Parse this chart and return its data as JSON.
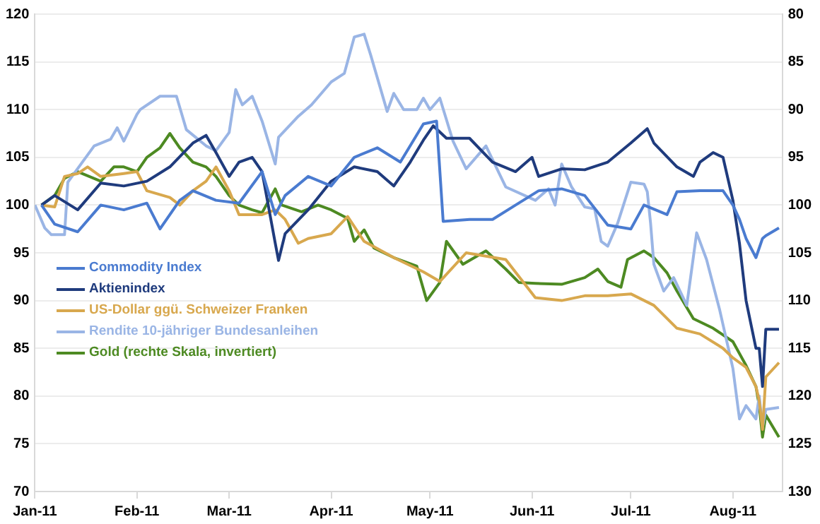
{
  "chart_data": {
    "type": "line",
    "xlim": [
      "2011-01-01",
      "2011-08-16"
    ],
    "xticks": [
      {
        "value": "2011-01-01",
        "label": "Jan-11"
      },
      {
        "value": "2011-02-01",
        "label": "Feb-11"
      },
      {
        "value": "2011-03-01",
        "label": "Mar-11"
      },
      {
        "value": "2011-04-01",
        "label": "Apr-11"
      },
      {
        "value": "2011-05-01",
        "label": "May-11"
      },
      {
        "value": "2011-06-01",
        "label": "Jun-11"
      },
      {
        "value": "2011-07-01",
        "label": "Jul-11"
      },
      {
        "value": "2011-08-01",
        "label": "Aug-11"
      }
    ],
    "ylim": [
      70,
      120
    ],
    "yticks": [
      70,
      75,
      80,
      85,
      90,
      95,
      100,
      105,
      110,
      115,
      120
    ],
    "y2lim": [
      130,
      80
    ],
    "y2ticks": [
      80,
      85,
      90,
      95,
      100,
      105,
      110,
      115,
      120,
      125,
      130
    ],
    "grid": "y",
    "legend": "left",
    "marker": "none",
    "line_style": "solid",
    "series": [
      {
        "name": "Commodity Index",
        "color": "#4a7bd0",
        "x": [
          "2011-01-03",
          "2011-01-07",
          "2011-01-14",
          "2011-01-21",
          "2011-01-28",
          "2011-02-04",
          "2011-02-08",
          "2011-02-14",
          "2011-02-18",
          "2011-02-25",
          "2011-03-04",
          "2011-03-11",
          "2011-03-15",
          "2011-03-18",
          "2011-03-25",
          "2011-04-01",
          "2011-04-08",
          "2011-04-15",
          "2011-04-22",
          "2011-04-29",
          "2011-05-03",
          "2011-05-05",
          "2011-05-13",
          "2011-05-20",
          "2011-05-27",
          "2011-06-03",
          "2011-06-10",
          "2011-06-17",
          "2011-06-24",
          "2011-07-01",
          "2011-07-05",
          "2011-07-12",
          "2011-07-15",
          "2011-07-22",
          "2011-07-29",
          "2011-08-01",
          "2011-08-03",
          "2011-08-05",
          "2011-08-08",
          "2011-08-10",
          "2011-08-11",
          "2011-08-15"
        ],
        "values": [
          100,
          98,
          97.2,
          100,
          99.5,
          100.2,
          97.5,
          100.5,
          101.5,
          100.5,
          100.2,
          103.5,
          99,
          101,
          103,
          102,
          105,
          106,
          104.5,
          108.5,
          108.8,
          98.3,
          98.5,
          98.5,
          100,
          101.5,
          101.7,
          101,
          97.9,
          97.5,
          100,
          99,
          101.4,
          101.5,
          101.5,
          100,
          98.5,
          96.5,
          94.5,
          96.5,
          96.8,
          97.6
        ]
      },
      {
        "name": "Aktienindex",
        "color": "#1f3b7d",
        "x": [
          "2011-01-03",
          "2011-01-07",
          "2011-01-14",
          "2011-01-21",
          "2011-01-28",
          "2011-02-04",
          "2011-02-11",
          "2011-02-18",
          "2011-02-22",
          "2011-02-25",
          "2011-03-01",
          "2011-03-04",
          "2011-03-08",
          "2011-03-11",
          "2011-03-15",
          "2011-03-16",
          "2011-03-18",
          "2011-03-25",
          "2011-04-01",
          "2011-04-08",
          "2011-04-15",
          "2011-04-20",
          "2011-04-25",
          "2011-04-29",
          "2011-05-02",
          "2011-05-06",
          "2011-05-13",
          "2011-05-20",
          "2011-05-27",
          "2011-06-01",
          "2011-06-03",
          "2011-06-10",
          "2011-06-17",
          "2011-06-24",
          "2011-07-01",
          "2011-07-06",
          "2011-07-08",
          "2011-07-15",
          "2011-07-20",
          "2011-07-22",
          "2011-07-26",
          "2011-07-29",
          "2011-08-01",
          "2011-08-03",
          "2011-08-05",
          "2011-08-08",
          "2011-08-09",
          "2011-08-10",
          "2011-08-11",
          "2011-08-15"
        ],
        "values": [
          100,
          101,
          99.5,
          102.3,
          102,
          102.5,
          104,
          106.5,
          107.3,
          105.5,
          103,
          104.5,
          105,
          103.5,
          96,
          94.2,
          97,
          99.5,
          102.5,
          104,
          103.5,
          102,
          104.5,
          106.8,
          108.3,
          107,
          107,
          104.5,
          103.5,
          105,
          103,
          103.8,
          103.7,
          104.5,
          106.5,
          108,
          106.5,
          104,
          103,
          104.5,
          105.5,
          105,
          100.5,
          96,
          90,
          85,
          85,
          81,
          87,
          87
        ]
      },
      {
        "name": "US-Dollar ggü. Schweizer Franken",
        "color": "#d8a84e",
        "x": [
          "2011-01-03",
          "2011-01-07",
          "2011-01-10",
          "2011-01-14",
          "2011-01-17",
          "2011-01-21",
          "2011-01-28",
          "2011-02-01",
          "2011-02-04",
          "2011-02-11",
          "2011-02-14",
          "2011-02-18",
          "2011-02-22",
          "2011-02-25",
          "2011-03-01",
          "2011-03-04",
          "2011-03-11",
          "2011-03-15",
          "2011-03-18",
          "2011-03-22",
          "2011-03-25",
          "2011-04-01",
          "2011-04-06",
          "2011-04-11",
          "2011-04-20",
          "2011-04-29",
          "2011-05-04",
          "2011-05-12",
          "2011-05-24",
          "2011-06-02",
          "2011-06-10",
          "2011-06-17",
          "2011-06-24",
          "2011-07-01",
          "2011-07-08",
          "2011-07-15",
          "2011-07-22",
          "2011-07-29",
          "2011-08-01",
          "2011-08-05",
          "2011-08-08",
          "2011-08-09",
          "2011-08-10",
          "2011-08-11",
          "2011-08-15"
        ],
        "values": [
          100,
          99.8,
          103,
          103.3,
          104,
          103,
          103.3,
          103.5,
          101.5,
          100.8,
          100,
          101.5,
          102.5,
          104,
          101.5,
          99,
          99,
          99.5,
          98.5,
          96,
          96.5,
          97,
          98.8,
          96.2,
          94.5,
          93,
          92,
          95,
          94.3,
          90.3,
          90,
          90.5,
          90.5,
          90.7,
          89.5,
          87.1,
          86.5,
          85,
          84,
          83,
          81,
          79.5,
          76.5,
          82,
          83.5
        ]
      },
      {
        "name": "Rendite 10-jähriger Bundesanleihen",
        "color": "#9ab5e5",
        "x": [
          "2011-01-01",
          "2011-01-04",
          "2011-01-06",
          "2011-01-10",
          "2011-01-11",
          "2011-01-19",
          "2011-01-24",
          "2011-01-26",
          "2011-01-28",
          "2011-02-01",
          "2011-02-02",
          "2011-02-08",
          "2011-02-13",
          "2011-02-16",
          "2011-02-22",
          "2011-02-25",
          "2011-03-01",
          "2011-03-03",
          "2011-03-05",
          "2011-03-08",
          "2011-03-11",
          "2011-03-15",
          "2011-03-16",
          "2011-03-22",
          "2011-03-26",
          "2011-04-01",
          "2011-04-05",
          "2011-04-08",
          "2011-04-11",
          "2011-04-13",
          "2011-04-18",
          "2011-04-20",
          "2011-04-23",
          "2011-04-27",
          "2011-04-29",
          "2011-05-01",
          "2011-05-04",
          "2011-05-08",
          "2011-05-12",
          "2011-05-18",
          "2011-05-24",
          "2011-06-02",
          "2011-06-06",
          "2011-06-08",
          "2011-06-10",
          "2011-06-13",
          "2011-06-17",
          "2011-06-20",
          "2011-06-22",
          "2011-06-24",
          "2011-06-27",
          "2011-07-01",
          "2011-07-05",
          "2011-07-06",
          "2011-07-07",
          "2011-07-08",
          "2011-07-11",
          "2011-07-14",
          "2011-07-18",
          "2011-07-21",
          "2011-07-24",
          "2011-07-28",
          "2011-08-01",
          "2011-08-03",
          "2011-08-05",
          "2011-08-08",
          "2011-08-09",
          "2011-08-10",
          "2011-08-11",
          "2011-08-15"
        ],
        "values": [
          100,
          97.6,
          96.9,
          96.9,
          102.4,
          106.2,
          106.9,
          108.1,
          106.7,
          109.5,
          110,
          111.4,
          111.4,
          107.9,
          106.2,
          105.7,
          107.6,
          112.1,
          110.5,
          111.4,
          108.8,
          104.3,
          107.1,
          109.3,
          110.5,
          112.9,
          113.8,
          117.6,
          117.9,
          115.7,
          109.8,
          111.7,
          110,
          110,
          111.2,
          110,
          111.2,
          106.7,
          103.8,
          106.2,
          101.9,
          100.5,
          101.7,
          100,
          104.3,
          101.9,
          99.8,
          99.6,
          96.2,
          95.7,
          98.1,
          102.4,
          102.2,
          101.4,
          98.1,
          93.8,
          91,
          92.4,
          89.5,
          97.1,
          94.3,
          89,
          82.9,
          77.6,
          79,
          77.6,
          80,
          76.7,
          78.6,
          78.8
        ]
      },
      {
        "name": "Gold (rechte Skala, invertiert)",
        "color": "#4d8a22",
        "axis": "y2",
        "x": [
          "2011-01-03",
          "2011-01-07",
          "2011-01-10",
          "2011-01-14",
          "2011-01-21",
          "2011-01-25",
          "2011-01-28",
          "2011-02-01",
          "2011-02-04",
          "2011-02-08",
          "2011-02-11",
          "2011-02-14",
          "2011-02-18",
          "2011-02-22",
          "2011-02-25",
          "2011-03-01",
          "2011-03-04",
          "2011-03-08",
          "2011-03-11",
          "2011-03-15",
          "2011-03-17",
          "2011-03-23",
          "2011-03-28",
          "2011-04-01",
          "2011-04-06",
          "2011-04-08",
          "2011-04-11",
          "2011-04-14",
          "2011-04-20",
          "2011-04-27",
          "2011-04-30",
          "2011-05-04",
          "2011-05-06",
          "2011-05-11",
          "2011-05-18",
          "2011-05-24",
          "2011-05-28",
          "2011-06-02",
          "2011-06-10",
          "2011-06-17",
          "2011-06-21",
          "2011-06-24",
          "2011-06-28",
          "2011-06-30",
          "2011-07-05",
          "2011-07-08",
          "2011-07-12",
          "2011-07-15",
          "2011-07-20",
          "2011-07-26",
          "2011-08-01",
          "2011-08-05",
          "2011-08-08",
          "2011-08-09",
          "2011-08-10",
          "2011-08-11",
          "2011-08-15"
        ],
        "values": [
          100,
          99,
          97.2,
          96.5,
          97.5,
          96,
          96,
          96.5,
          95,
          94,
          92.5,
          94,
          95.5,
          96,
          97,
          99,
          100,
          100.5,
          100.8,
          98.3,
          100,
          100.7,
          100,
          100.5,
          101.4,
          103.8,
          102.6,
          104.5,
          105.5,
          106.4,
          110,
          108.1,
          103.8,
          106.2,
          104.8,
          106.7,
          108.1,
          108.2,
          108.3,
          107.6,
          106.7,
          108,
          108.6,
          105.7,
          104.8,
          105.5,
          107.1,
          109,
          111.9,
          112.9,
          114.3,
          116.8,
          119,
          121,
          124.3,
          122,
          124.3
        ]
      }
    ]
  }
}
